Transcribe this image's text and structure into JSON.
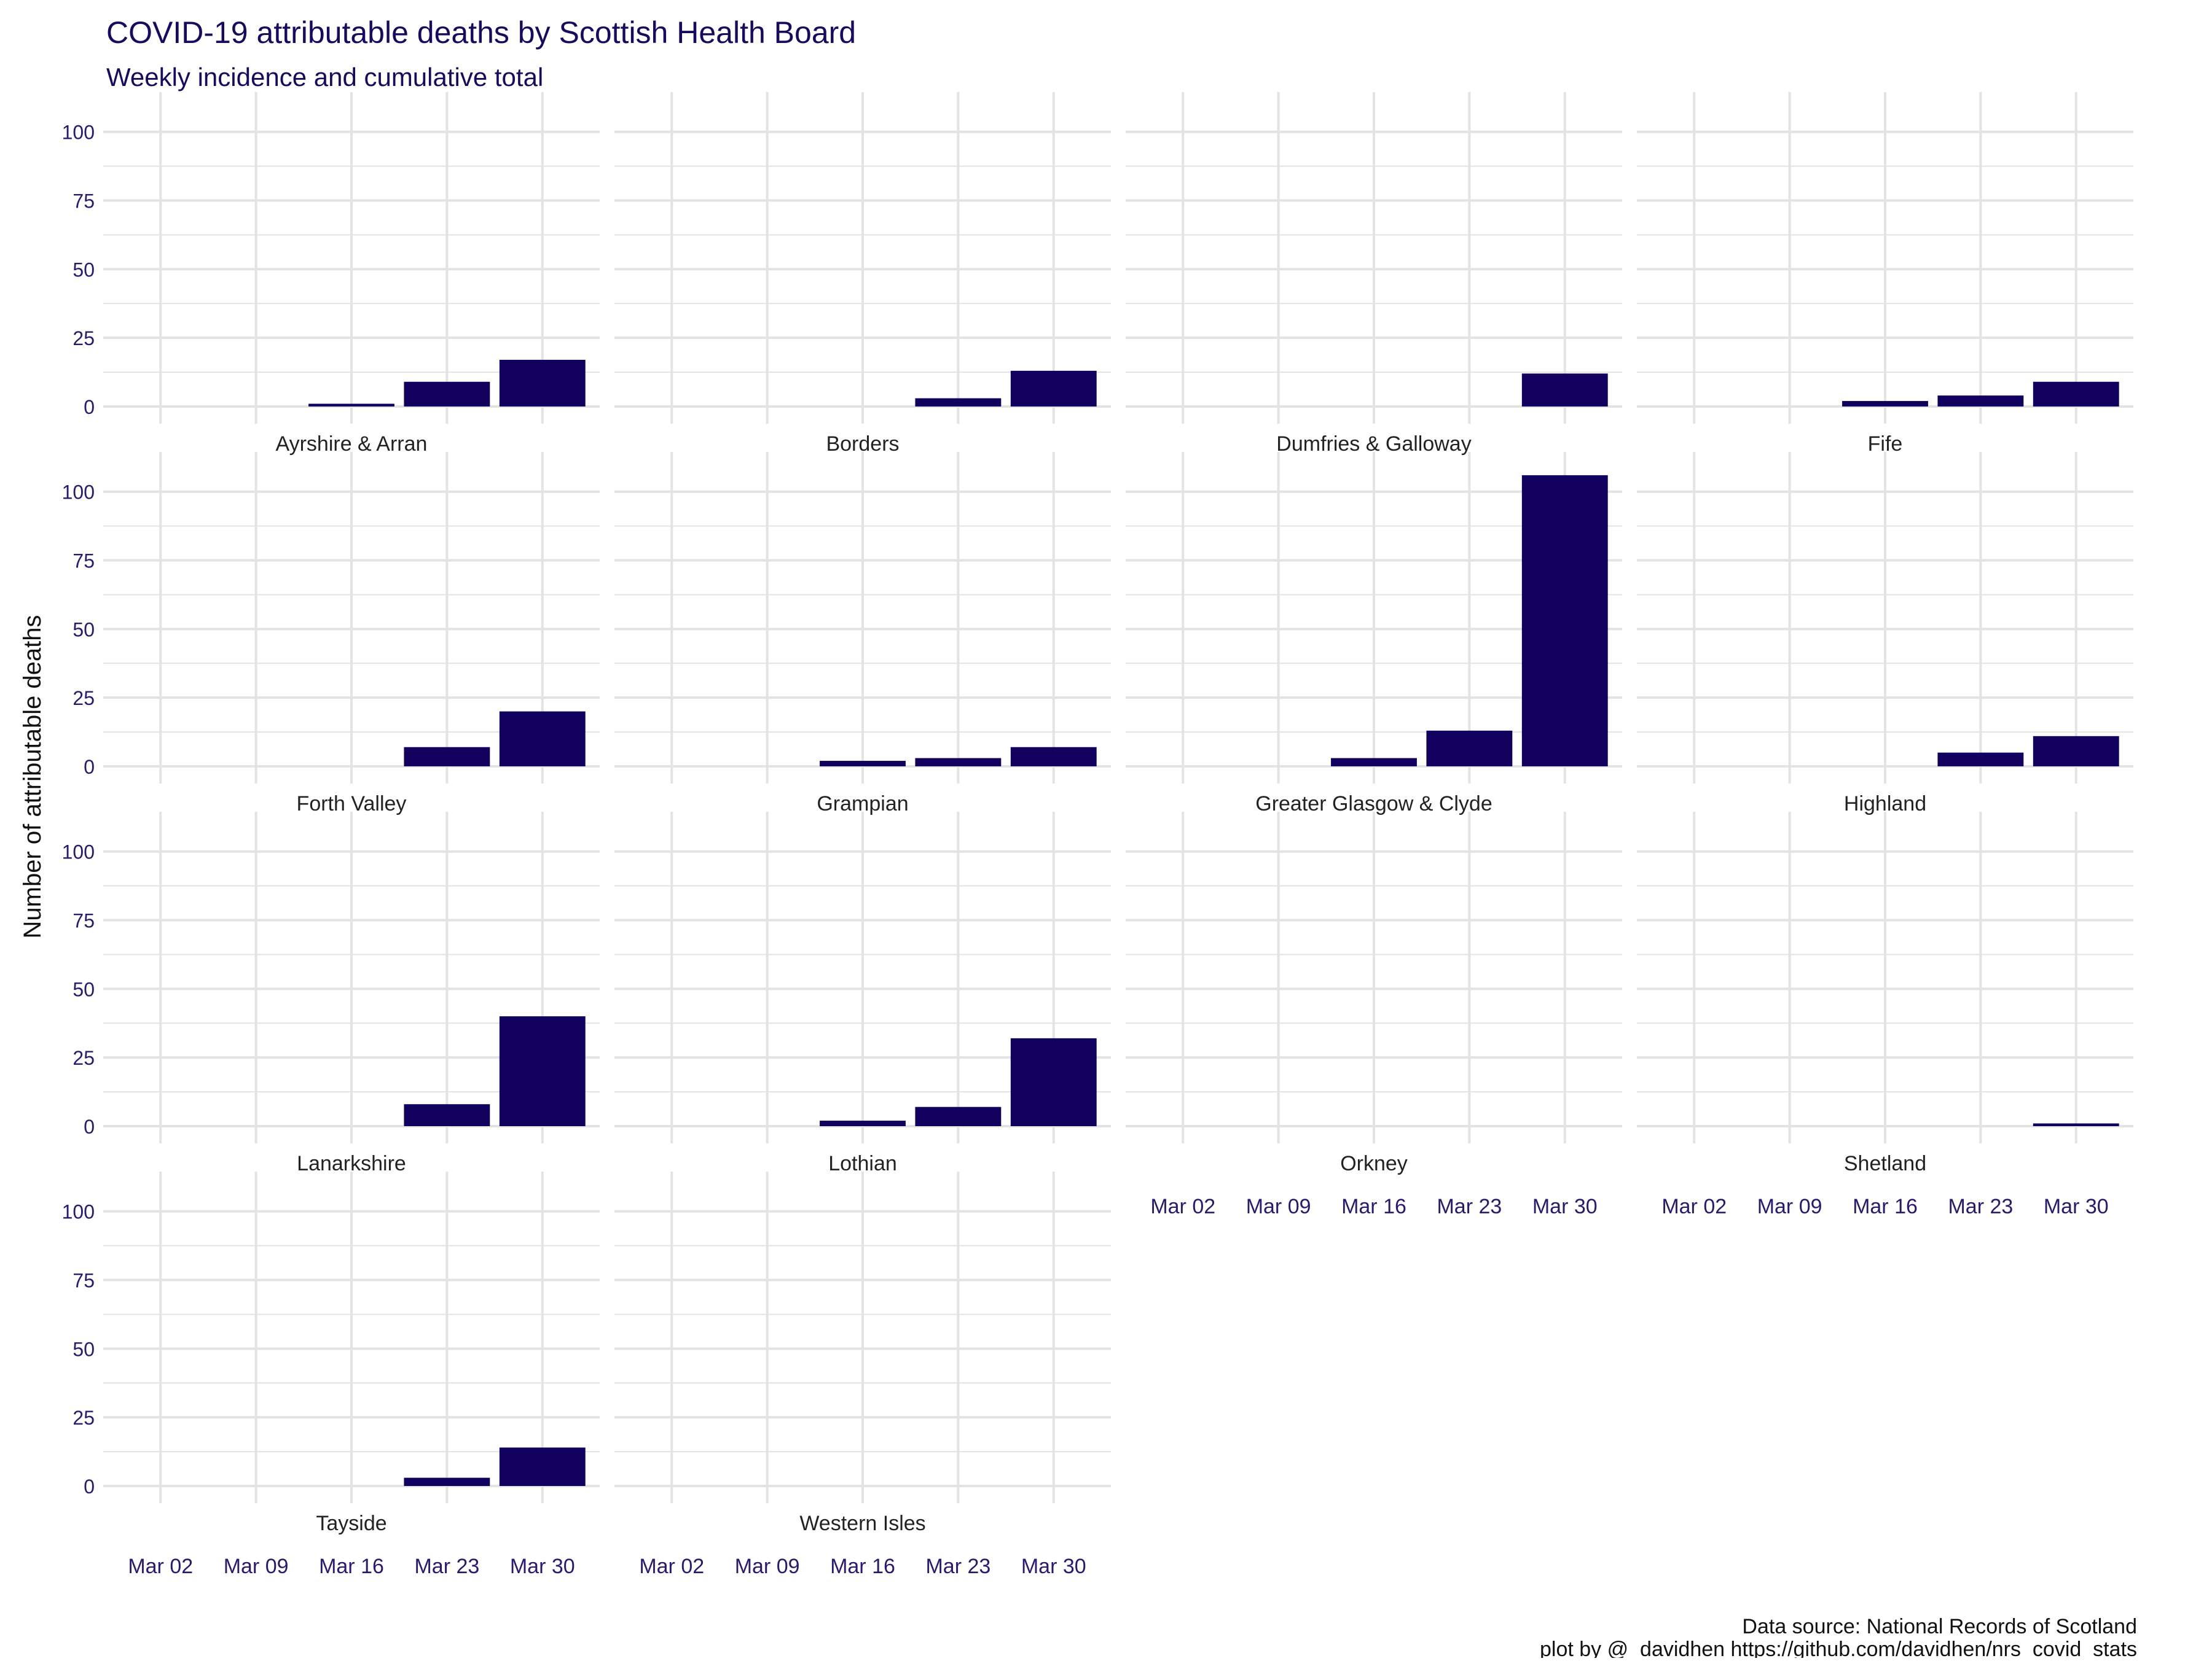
{
  "chart_data": {
    "type": "bar",
    "title": "COVID-19 attributable deaths by Scottish Health Board",
    "subtitle": "Weekly incidence and cumulative total",
    "ylabel": "Number of attributable deaths",
    "xlabel": "",
    "caption_lines": [
      "Data source: National Records of Scotland",
      "plot by @_davidhen https://github.com/davidhen/nrs_covid_stats"
    ],
    "x_tick_labels": [
      "Mar 02",
      "Mar 09",
      "Mar 16",
      "Mar 23",
      "Mar 30"
    ],
    "y_ticks": [
      0,
      25,
      50,
      75,
      100
    ],
    "ylim": [
      0,
      110
    ],
    "grid": true,
    "facet_layout": "4 columns, panels in reading order",
    "colors": {
      "bar": "#12005e",
      "title": "#1a0a5e",
      "tick": "#2b1a6b",
      "strip_text": "#222222",
      "grid": "#e3e3e3"
    },
    "panels": [
      {
        "name": "Ayrshire & Arran",
        "values": [
          0,
          0,
          1,
          9,
          17
        ]
      },
      {
        "name": "Borders",
        "values": [
          0,
          0,
          0,
          3,
          13
        ]
      },
      {
        "name": "Dumfries & Galloway",
        "values": [
          0,
          0,
          0,
          0,
          12
        ]
      },
      {
        "name": "Fife",
        "values": [
          0,
          0,
          2,
          4,
          9
        ]
      },
      {
        "name": "Forth Valley",
        "values": [
          0,
          0,
          0,
          7,
          20
        ]
      },
      {
        "name": "Grampian",
        "values": [
          0,
          0,
          2,
          3,
          7
        ]
      },
      {
        "name": "Greater Glasgow & Clyde",
        "values": [
          0,
          0,
          3,
          13,
          106
        ]
      },
      {
        "name": "Highland",
        "values": [
          0,
          0,
          0,
          5,
          11
        ]
      },
      {
        "name": "Lanarkshire",
        "values": [
          0,
          0,
          0,
          8,
          40
        ]
      },
      {
        "name": "Lothian",
        "values": [
          0,
          0,
          2,
          7,
          32
        ]
      },
      {
        "name": "Orkney",
        "values": [
          0,
          0,
          0,
          0,
          0
        ]
      },
      {
        "name": "Shetland",
        "values": [
          0,
          0,
          0,
          0,
          1
        ]
      },
      {
        "name": "Tayside",
        "values": [
          0,
          0,
          0,
          3,
          14
        ]
      },
      {
        "name": "Western Isles",
        "values": [
          0,
          0,
          0,
          0,
          0
        ]
      }
    ]
  }
}
